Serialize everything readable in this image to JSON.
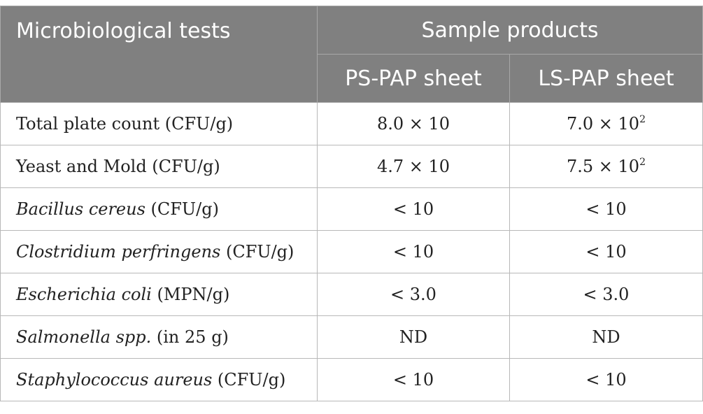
{
  "header": {
    "col1": "Microbiological tests",
    "group": "Sample products",
    "sub1": "PS-PAP sheet",
    "sub2": "LS-PAP sheet"
  },
  "rows": [
    {
      "name_italic": "",
      "name": "Total plate count (CFU/g)",
      "ps": "8.0 × 10",
      "ps_exp": "",
      "ls": "7.0 × 10",
      "ls_exp": "2"
    },
    {
      "name_italic": "",
      "name": "Yeast and Mold (CFU/g)",
      "ps": "4.7 × 10",
      "ps_exp": "",
      "ls": "7.5 × 10",
      "ls_exp": "2"
    },
    {
      "name_italic": "Bacillus cereus",
      "name": " (CFU/g)",
      "ps": "< 10",
      "ps_exp": "",
      "ls": "< 10",
      "ls_exp": ""
    },
    {
      "name_italic": "Clostridium perfringens",
      "name": " (CFU/g)",
      "ps": "< 10",
      "ps_exp": "",
      "ls": "< 10",
      "ls_exp": ""
    },
    {
      "name_italic": "Escherichia coli",
      "name": " (MPN/g)",
      "ps": "< 3.0",
      "ps_exp": "",
      "ls": "< 3.0",
      "ls_exp": ""
    },
    {
      "name_italic": "Salmonella spp.",
      "name": " (in 25 g)",
      "ps": "ND",
      "ps_exp": "",
      "ls": "ND",
      "ls_exp": ""
    },
    {
      "name_italic": "Staphylococcus aureus",
      "name": " (CFU/g)",
      "ps": "< 10",
      "ps_exp": "",
      "ls": "< 10",
      "ls_exp": ""
    }
  ]
}
